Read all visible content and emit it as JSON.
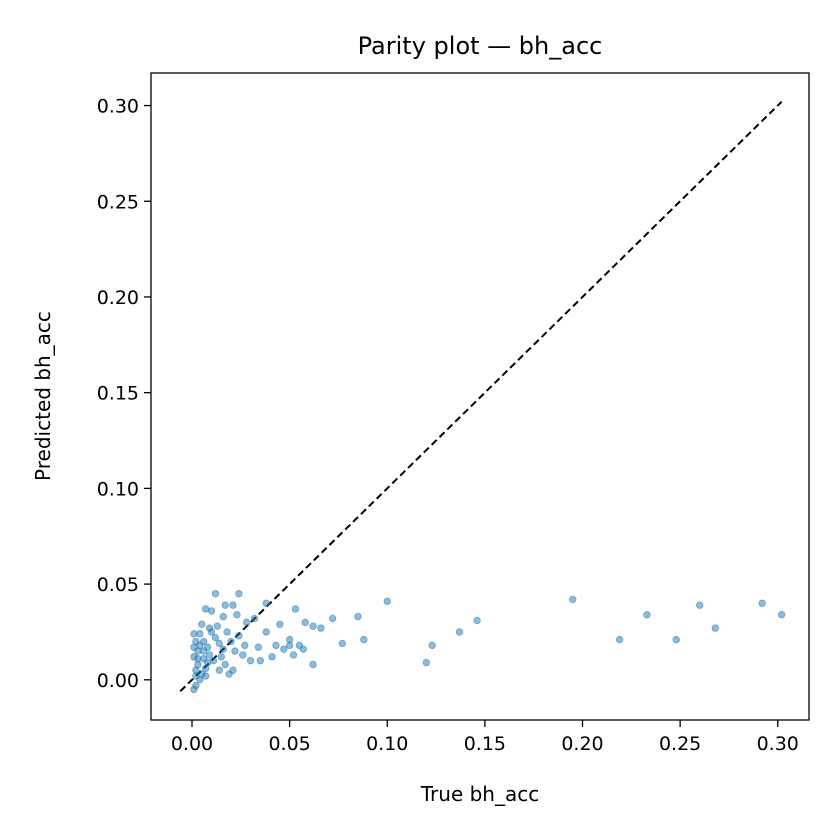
{
  "chart_data": {
    "type": "scatter",
    "title": "Parity plot — bh_acc",
    "xlabel": "True bh_acc",
    "ylabel": "Predicted bh_acc",
    "xlim": [
      -0.021,
      0.316
    ],
    "ylim": [
      -0.021,
      0.317
    ],
    "xticks": [
      "0.00",
      "0.05",
      "0.10",
      "0.15",
      "0.20",
      "0.25",
      "0.30"
    ],
    "yticks": [
      "0.00",
      "0.05",
      "0.10",
      "0.15",
      "0.20",
      "0.25",
      "0.30"
    ],
    "grid": false,
    "point_color": "#1f77b4",
    "reference_line": {
      "from": [
        -0.006,
        -0.006
      ],
      "to": [
        0.302,
        0.302
      ],
      "style": "dashed",
      "color": "#000000"
    },
    "points": [
      [
        0.012,
        0.045
      ],
      [
        0.024,
        0.045
      ],
      [
        0.007,
        0.037
      ],
      [
        0.017,
        0.039
      ],
      [
        0.021,
        0.039
      ],
      [
        0.01,
        0.036
      ],
      [
        0.038,
        0.04
      ],
      [
        0.053,
        0.037
      ],
      [
        0.016,
        0.033
      ],
      [
        0.023,
        0.034
      ],
      [
        0.032,
        0.032
      ],
      [
        0.028,
        0.03
      ],
      [
        0.058,
        0.03
      ],
      [
        0.062,
        0.028
      ],
      [
        0.066,
        0.027
      ],
      [
        0.072,
        0.032
      ],
      [
        0.085,
        0.033
      ],
      [
        0.045,
        0.029
      ],
      [
        0.038,
        0.025
      ],
      [
        0.1,
        0.041
      ],
      [
        0.146,
        0.031
      ],
      [
        0.137,
        0.025
      ],
      [
        0.123,
        0.018
      ],
      [
        0.12,
        0.009
      ],
      [
        0.088,
        0.021
      ],
      [
        0.077,
        0.019
      ],
      [
        0.062,
        0.008
      ],
      [
        0.052,
        0.013
      ],
      [
        0.047,
        0.016
      ],
      [
        0.041,
        0.012
      ],
      [
        0.035,
        0.01
      ],
      [
        0.03,
        0.01
      ],
      [
        0.026,
        0.013
      ],
      [
        0.022,
        0.015
      ],
      [
        0.019,
        0.003
      ],
      [
        0.014,
        0.005
      ],
      [
        0.007,
        0.002
      ],
      [
        0.004,
        0.0
      ],
      [
        0.002,
        -0.003
      ],
      [
        0.001,
        -0.005
      ],
      [
        0.002,
        0.005
      ],
      [
        0.003,
        0.008
      ],
      [
        0.001,
        0.012
      ],
      [
        0.003,
        0.015
      ],
      [
        0.002,
        0.02
      ],
      [
        0.004,
        0.024
      ],
      [
        0.006,
        0.02
      ],
      [
        0.008,
        0.017
      ],
      [
        0.009,
        0.013
      ],
      [
        0.011,
        0.01
      ],
      [
        0.012,
        0.022
      ],
      [
        0.014,
        0.019
      ],
      [
        0.016,
        0.016
      ],
      [
        0.018,
        0.025
      ],
      [
        0.005,
        0.029
      ],
      [
        0.009,
        0.027
      ],
      [
        0.001,
        0.024
      ],
      [
        0.002,
        0.002
      ],
      [
        0.003,
        0.011
      ],
      [
        0.001,
        0.017
      ],
      [
        0.006,
        0.011
      ],
      [
        0.007,
        0.006
      ],
      [
        0.005,
        0.003
      ],
      [
        0.01,
        0.025
      ],
      [
        0.013,
        0.028
      ],
      [
        0.02,
        0.02
      ],
      [
        0.024,
        0.023
      ],
      [
        0.027,
        0.018
      ],
      [
        0.034,
        0.017
      ],
      [
        0.043,
        0.018
      ],
      [
        0.05,
        0.018
      ],
      [
        0.055,
        0.018
      ],
      [
        0.057,
        0.016
      ],
      [
        0.05,
        0.021
      ],
      [
        0.015,
        0.012
      ],
      [
        0.017,
        0.008
      ],
      [
        0.021,
        0.005
      ],
      [
        0.008,
        0.009
      ],
      [
        0.004,
        0.018
      ],
      [
        0.006,
        0.015
      ],
      [
        0.195,
        0.042
      ],
      [
        0.233,
        0.034
      ],
      [
        0.219,
        0.021
      ],
      [
        0.248,
        0.021
      ],
      [
        0.26,
        0.039
      ],
      [
        0.268,
        0.027
      ],
      [
        0.292,
        0.04
      ],
      [
        0.302,
        0.034
      ]
    ]
  }
}
